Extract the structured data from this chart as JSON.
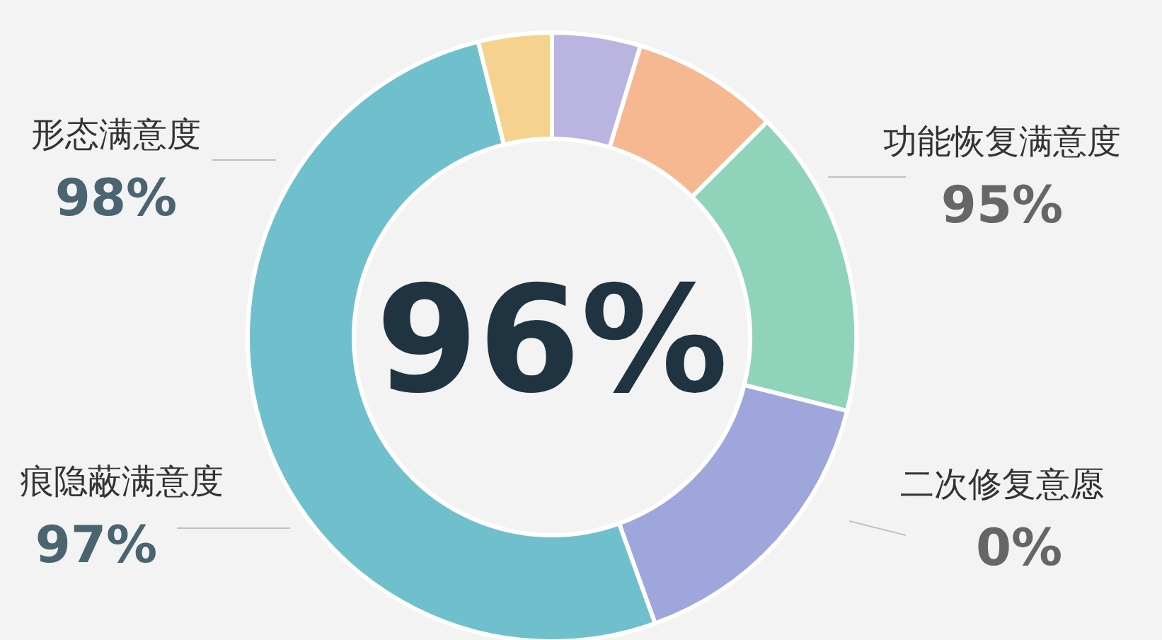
{
  "chart_data": {
    "type": "donut",
    "title": "96%",
    "categories": [
      null,
      null,
      null,
      null,
      null,
      null
    ],
    "values": [
      4.7,
      7.8,
      16.4,
      15.6,
      51.6,
      3.9
    ],
    "colors": [
      "#b9b5e0",
      "#f5b891",
      "#8fd3bb",
      "#9ea6dc",
      "#6fc0cc",
      "#f5d38f"
    ],
    "annotations": [
      "形态满意度",
      "98%",
      "功能恢复满意度",
      "95%",
      "痕隐蔽满意度",
      "97%",
      "二次修复意愿",
      "0%"
    ]
  }
}
